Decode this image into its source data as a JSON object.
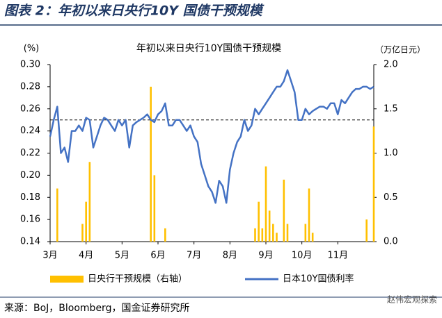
{
  "header": {
    "title": "图表 2：年初以来日央行10Y 国债干预规模"
  },
  "chart_data": {
    "type": "bar-line",
    "title": "年初以来日央行10Y国债干预规模",
    "y_label": "(%)",
    "y2_label": "（万亿日元）",
    "categories": [
      "3月",
      null,
      null,
      null,
      null,
      null,
      null,
      null,
      null,
      null,
      "4月",
      null,
      null,
      null,
      null,
      null,
      null,
      null,
      null,
      null,
      "5月",
      null,
      null,
      null,
      null,
      null,
      null,
      null,
      null,
      null,
      "6月",
      null,
      null,
      null,
      null,
      null,
      null,
      null,
      null,
      null,
      "7月",
      null,
      null,
      null,
      null,
      null,
      null,
      null,
      null,
      null,
      "8月",
      null,
      null,
      null,
      null,
      null,
      null,
      null,
      null,
      null,
      "9月",
      null,
      null,
      null,
      null,
      null,
      null,
      null,
      null,
      null,
      "10月",
      null,
      null,
      null,
      null,
      null,
      null,
      null,
      null,
      null,
      "11月",
      null,
      null,
      null,
      null,
      null,
      null,
      null,
      null,
      null,
      null
    ],
    "series": [
      {
        "name": "日央行干预规模（右轴）",
        "color": "#ffc000",
        "axis": "y2",
        "kind": "bar",
        "values": [
          0,
          0,
          0.6,
          0,
          0,
          0,
          0,
          0,
          0,
          0.2,
          0.45,
          0.9,
          0,
          0,
          0,
          0,
          0,
          0,
          0,
          0,
          0,
          0,
          0,
          0,
          0,
          0,
          0,
          0,
          1.75,
          0.75,
          0,
          0,
          0.15,
          0,
          0,
          0,
          0,
          0,
          0,
          0,
          0,
          0,
          0,
          0,
          0,
          0,
          0,
          0,
          0,
          0,
          0,
          0,
          0,
          0,
          0,
          0,
          0,
          0.15,
          0.45,
          0.15,
          0.85,
          0.35,
          0.2,
          0.1,
          0,
          0.7,
          0.2,
          0,
          0,
          0,
          0,
          0.2,
          0.6,
          0.1,
          0,
          0,
          0,
          0,
          0,
          0,
          0,
          0,
          0,
          0,
          0,
          0,
          0,
          0,
          0.25,
          0,
          1.3
        ]
      },
      {
        "name": "日本10Y国债利率",
        "color": "#4472c4",
        "kind": "line",
        "values": [
          0.235,
          0.25,
          0.262,
          0.22,
          0.225,
          0.212,
          0.24,
          0.24,
          0.245,
          0.24,
          0.252,
          0.25,
          0.225,
          0.235,
          0.245,
          0.252,
          0.25,
          0.245,
          0.24,
          0.25,
          0.245,
          0.25,
          0.225,
          0.245,
          0.248,
          0.25,
          0.252,
          0.255,
          0.25,
          0.248,
          0.255,
          0.258,
          0.265,
          0.245,
          0.245,
          0.25,
          0.25,
          0.245,
          0.24,
          0.245,
          0.235,
          0.23,
          0.21,
          0.2,
          0.19,
          0.185,
          0.175,
          0.195,
          0.19,
          0.175,
          0.205,
          0.22,
          0.23,
          0.235,
          0.25,
          0.24,
          0.245,
          0.26,
          0.255,
          0.26,
          0.265,
          0.27,
          0.275,
          0.28,
          0.28,
          0.285,
          0.295,
          0.285,
          0.275,
          0.25,
          0.25,
          0.26,
          0.255,
          0.258,
          0.26,
          0.262,
          0.262,
          0.26,
          0.265,
          0.265,
          0.255,
          0.268,
          0.265,
          0.27,
          0.275,
          0.278,
          0.278,
          0.28,
          0.28,
          0.278,
          0.28
        ]
      }
    ],
    "hline": 0.25,
    "ylim": [
      0.14,
      0.3
    ],
    "yticks": [
      0.14,
      0.16,
      0.18,
      {
        "value": 0.2,
        "label": "0.20"
      },
      0.22,
      0.24,
      0.26,
      0.28,
      {
        "value": 0.3,
        "label": "0.30"
      }
    ],
    "y2lim": [
      0,
      2
    ],
    "y2ticks": [
      {
        "value": 0,
        "label": "0.0"
      },
      0.5,
      {
        "value": 1,
        "label": "1.0"
      },
      1.5,
      {
        "value": 2,
        "label": "2.0"
      }
    ]
  },
  "footer": {
    "source": "来源：BoJ，Bloomberg，国金证券研究所",
    "watermark": "赵伟宏观探索"
  }
}
